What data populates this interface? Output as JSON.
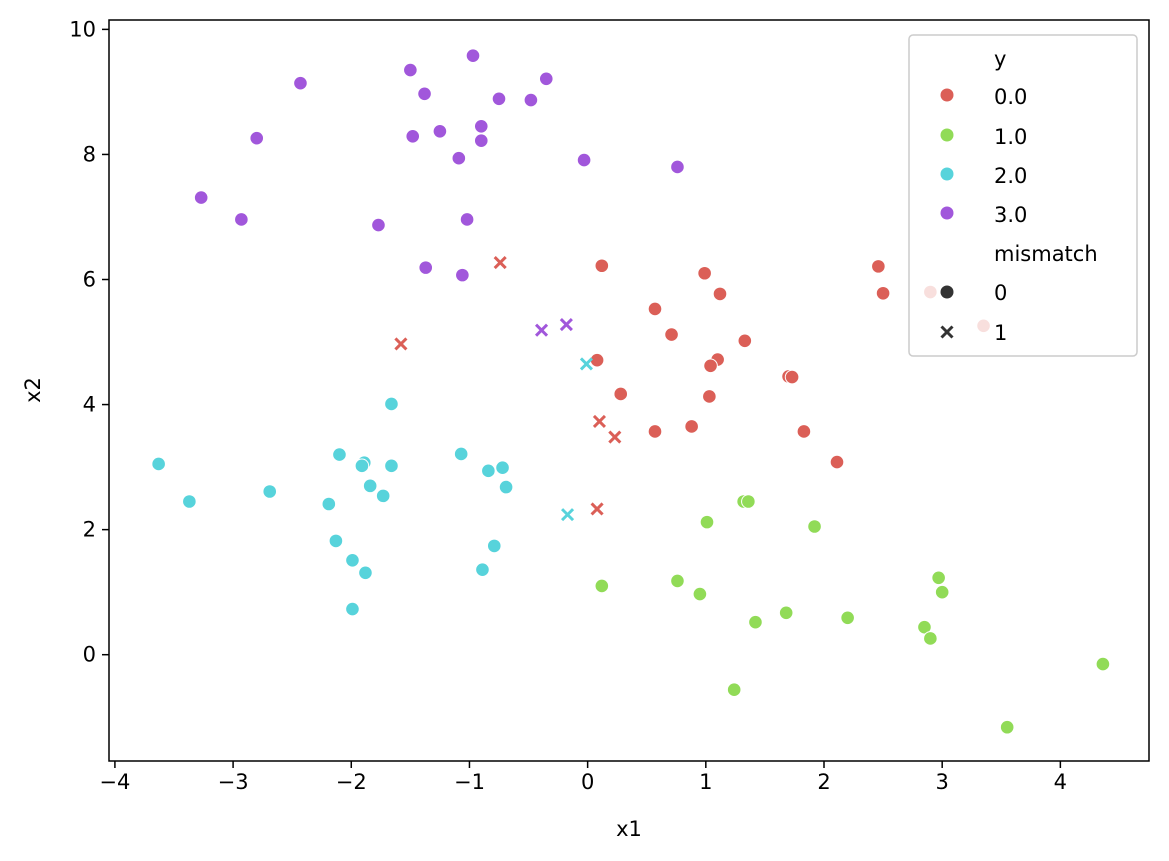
{
  "chart_data": {
    "type": "scatter",
    "xlabel": "x1",
    "ylabel": "x2",
    "xlim": [
      -4.05,
      4.75
    ],
    "ylim": [
      -1.7,
      10.15
    ],
    "xticks": [
      -4,
      -3,
      -2,
      -1,
      0,
      1,
      2,
      3,
      4
    ],
    "xtick_labels": [
      "−4",
      "−3",
      "−2",
      "−1",
      "0",
      "1",
      "2",
      "3",
      "4"
    ],
    "yticks": [
      0,
      2,
      4,
      6,
      8,
      10
    ],
    "ytick_labels": [
      "0",
      "2",
      "4",
      "6",
      "8",
      "10"
    ],
    "grid": false,
    "legend_position": "upper right",
    "legend": {
      "hue_title": "y",
      "hue_entries": [
        {
          "label": "0.0",
          "color": "#db5f57"
        },
        {
          "label": "1.0",
          "color": "#91db57"
        },
        {
          "label": "2.0",
          "color": "#57d3db"
        },
        {
          "label": "3.0",
          "color": "#a157db"
        }
      ],
      "style_title": "mismatch",
      "style_entries": [
        {
          "label": "0",
          "marker": "circle"
        },
        {
          "label": "1",
          "marker": "x"
        }
      ]
    },
    "series": [
      {
        "y": "0.0",
        "color": "#db5f57",
        "points": [
          {
            "x": 0.12,
            "y": 6.22,
            "m": 0
          },
          {
            "x": 0.99,
            "y": 6.1,
            "m": 0
          },
          {
            "x": 1.12,
            "y": 5.77,
            "m": 0
          },
          {
            "x": 0.57,
            "y": 5.53,
            "m": 0
          },
          {
            "x": 0.71,
            "y": 5.12,
            "m": 0
          },
          {
            "x": 1.33,
            "y": 5.02,
            "m": 0
          },
          {
            "x": 0.08,
            "y": 4.71,
            "m": 0
          },
          {
            "x": 1.1,
            "y": 4.72,
            "m": 0
          },
          {
            "x": 1.04,
            "y": 4.62,
            "m": 0
          },
          {
            "x": 1.7,
            "y": 4.45,
            "m": 0
          },
          {
            "x": 1.73,
            "y": 4.44,
            "m": 0
          },
          {
            "x": 0.28,
            "y": 4.17,
            "m": 0
          },
          {
            "x": 1.03,
            "y": 4.13,
            "m": 0
          },
          {
            "x": 0.57,
            "y": 3.57,
            "m": 0
          },
          {
            "x": 0.88,
            "y": 3.65,
            "m": 0
          },
          {
            "x": 1.83,
            "y": 3.57,
            "m": 0
          },
          {
            "x": 2.11,
            "y": 3.08,
            "m": 0
          },
          {
            "x": 2.46,
            "y": 6.21,
            "m": 0
          },
          {
            "x": 2.5,
            "y": 5.78,
            "m": 0
          },
          {
            "x": 2.9,
            "y": 5.8,
            "m": 0
          },
          {
            "x": 3.35,
            "y": 5.26,
            "m": 0
          },
          {
            "x": -0.74,
            "y": 6.27,
            "m": 1
          },
          {
            "x": -1.58,
            "y": 4.97,
            "m": 1
          },
          {
            "x": 0.1,
            "y": 3.73,
            "m": 1
          },
          {
            "x": 0.23,
            "y": 3.48,
            "m": 1
          },
          {
            "x": 0.08,
            "y": 2.33,
            "m": 1
          }
        ]
      },
      {
        "y": "1.0",
        "color": "#91db57",
        "points": [
          {
            "x": 1.32,
            "y": 2.45,
            "m": 0
          },
          {
            "x": 1.36,
            "y": 2.45,
            "m": 0
          },
          {
            "x": 1.01,
            "y": 2.12,
            "m": 0
          },
          {
            "x": 1.92,
            "y": 2.05,
            "m": 0
          },
          {
            "x": 0.12,
            "y": 1.1,
            "m": 0
          },
          {
            "x": 0.76,
            "y": 1.18,
            "m": 0
          },
          {
            "x": 0.95,
            "y": 0.97,
            "m": 0
          },
          {
            "x": 2.97,
            "y": 1.23,
            "m": 0
          },
          {
            "x": 3.0,
            "y": 1.0,
            "m": 0
          },
          {
            "x": 1.42,
            "y": 0.52,
            "m": 0
          },
          {
            "x": 1.68,
            "y": 0.67,
            "m": 0
          },
          {
            "x": 2.2,
            "y": 0.59,
            "m": 0
          },
          {
            "x": 2.85,
            "y": 0.44,
            "m": 0
          },
          {
            "x": 2.9,
            "y": 0.26,
            "m": 0
          },
          {
            "x": 1.24,
            "y": -0.56,
            "m": 0
          },
          {
            "x": 4.36,
            "y": -0.15,
            "m": 0
          },
          {
            "x": 3.55,
            "y": -1.16,
            "m": 0
          }
        ]
      },
      {
        "y": "2.0",
        "color": "#57d3db",
        "points": [
          {
            "x": -1.66,
            "y": 4.01,
            "m": 0
          },
          {
            "x": -3.63,
            "y": 3.05,
            "m": 0
          },
          {
            "x": -3.37,
            "y": 2.45,
            "m": 0
          },
          {
            "x": -2.69,
            "y": 2.61,
            "m": 0
          },
          {
            "x": -2.1,
            "y": 3.2,
            "m": 0
          },
          {
            "x": -1.89,
            "y": 3.07,
            "m": 0
          },
          {
            "x": -1.91,
            "y": 3.02,
            "m": 0
          },
          {
            "x": -1.66,
            "y": 3.02,
            "m": 0
          },
          {
            "x": -1.84,
            "y": 2.7,
            "m": 0
          },
          {
            "x": -1.73,
            "y": 2.54,
            "m": 0
          },
          {
            "x": -2.19,
            "y": 2.41,
            "m": 0
          },
          {
            "x": -1.07,
            "y": 3.21,
            "m": 0
          },
          {
            "x": -0.84,
            "y": 2.94,
            "m": 0
          },
          {
            "x": -0.72,
            "y": 2.99,
            "m": 0
          },
          {
            "x": -0.69,
            "y": 2.68,
            "m": 0
          },
          {
            "x": -2.13,
            "y": 1.82,
            "m": 0
          },
          {
            "x": -1.99,
            "y": 1.51,
            "m": 0
          },
          {
            "x": -1.88,
            "y": 1.31,
            "m": 0
          },
          {
            "x": -0.79,
            "y": 1.74,
            "m": 0
          },
          {
            "x": -0.89,
            "y": 1.36,
            "m": 0
          },
          {
            "x": -1.99,
            "y": 0.73,
            "m": 0
          },
          {
            "x": -0.01,
            "y": 4.65,
            "m": 1
          },
          {
            "x": -0.17,
            "y": 2.24,
            "m": 1
          }
        ]
      },
      {
        "y": "3.0",
        "color": "#a157db",
        "points": [
          {
            "x": -0.97,
            "y": 9.58,
            "m": 0
          },
          {
            "x": -1.5,
            "y": 9.35,
            "m": 0
          },
          {
            "x": -2.43,
            "y": 9.14,
            "m": 0
          },
          {
            "x": -0.35,
            "y": 9.21,
            "m": 0
          },
          {
            "x": -1.38,
            "y": 8.97,
            "m": 0
          },
          {
            "x": -0.75,
            "y": 8.89,
            "m": 0
          },
          {
            "x": -0.48,
            "y": 8.87,
            "m": 0
          },
          {
            "x": -0.9,
            "y": 8.45,
            "m": 0
          },
          {
            "x": -1.25,
            "y": 8.37,
            "m": 0
          },
          {
            "x": -1.48,
            "y": 8.29,
            "m": 0
          },
          {
            "x": -2.8,
            "y": 8.26,
            "m": 0
          },
          {
            "x": -0.9,
            "y": 8.22,
            "m": 0
          },
          {
            "x": -1.09,
            "y": 7.94,
            "m": 0
          },
          {
            "x": -0.03,
            "y": 7.91,
            "m": 0
          },
          {
            "x": 0.76,
            "y": 7.8,
            "m": 0
          },
          {
            "x": -3.27,
            "y": 7.31,
            "m": 0
          },
          {
            "x": -2.93,
            "y": 6.96,
            "m": 0
          },
          {
            "x": -1.02,
            "y": 6.96,
            "m": 0
          },
          {
            "x": -1.77,
            "y": 6.87,
            "m": 0
          },
          {
            "x": -1.37,
            "y": 6.19,
            "m": 0
          },
          {
            "x": -1.06,
            "y": 6.07,
            "m": 0
          },
          {
            "x": -0.39,
            "y": 5.19,
            "m": 1
          },
          {
            "x": -0.18,
            "y": 5.28,
            "m": 1
          }
        ]
      }
    ]
  }
}
